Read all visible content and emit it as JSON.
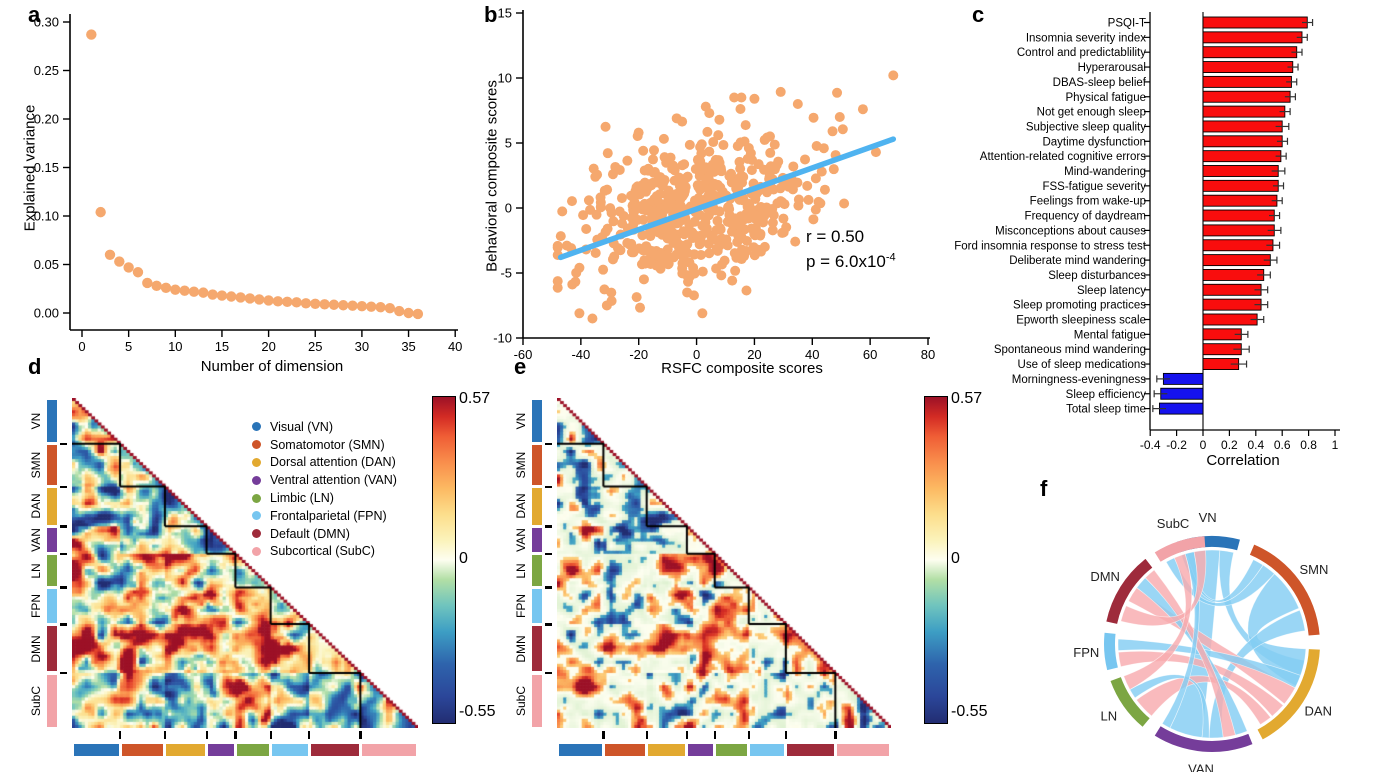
{
  "panel_labels": {
    "a": "a",
    "b": "b",
    "c": "c",
    "d": "d",
    "e": "e",
    "f": "f"
  },
  "networks": [
    {
      "name": "Visual",
      "abbr": "VN",
      "color": "#2A74B8",
      "count": 15
    },
    {
      "name": "Somatomotor",
      "abbr": "SMN",
      "color": "#CE5529",
      "count": 14
    },
    {
      "name": "Dorsal attention",
      "abbr": "DAN",
      "color": "#E2A930",
      "count": 13
    },
    {
      "name": "Ventral attention",
      "abbr": "VAN",
      "color": "#753D9A",
      "count": 9
    },
    {
      "name": "Limbic",
      "abbr": "LN",
      "color": "#7CA643",
      "count": 11
    },
    {
      "name": "Frontalparietal",
      "abbr": "FPN",
      "color": "#77C6F0",
      "count": 12
    },
    {
      "name": "Default",
      "abbr": "DMN",
      "color": "#9E2B3B",
      "count": 16
    },
    {
      "name": "Subcortical",
      "abbr": "SubC",
      "color": "#F2A3A8",
      "count": 18
    }
  ],
  "chart_data": [
    {
      "id": "a",
      "type": "scatter",
      "xlabel": "Number of dimension",
      "ylabel": "Explained variance",
      "xlim": [
        0,
        40
      ],
      "ylim": [
        0,
        0.3
      ],
      "xticks": [
        0,
        5,
        10,
        15,
        20,
        25,
        30,
        35,
        40
      ],
      "ytick_vals": [
        0,
        0.05,
        0.1,
        0.15,
        0.2,
        0.25,
        0.3
      ],
      "ytick_labels": [
        "0.00",
        "0.05",
        "0.10",
        "0.15",
        "0.20",
        "0.25",
        "0.30"
      ],
      "point_color": "#F5A86E",
      "x": [
        1,
        2,
        3,
        4,
        5,
        6,
        7,
        8,
        9,
        10,
        11,
        12,
        13,
        14,
        15,
        16,
        17,
        18,
        19,
        20,
        21,
        22,
        23,
        24,
        25,
        26,
        27,
        28,
        29,
        30,
        31,
        32,
        33,
        34,
        35,
        36
      ],
      "y": [
        0.287,
        0.104,
        0.06,
        0.053,
        0.047,
        0.042,
        0.031,
        0.028,
        0.026,
        0.024,
        0.023,
        0.022,
        0.021,
        0.019,
        0.018,
        0.017,
        0.016,
        0.015,
        0.014,
        0.013,
        0.012,
        0.0115,
        0.011,
        0.01,
        0.0095,
        0.009,
        0.0085,
        0.008,
        0.0075,
        0.007,
        0.0065,
        0.006,
        0.005,
        0.002,
        0.0,
        -0.001
      ]
    },
    {
      "id": "b",
      "type": "scatter",
      "xlabel": "RSFC composite scores",
      "ylabel": "Behavioral composite scores",
      "xlim": [
        -60,
        80
      ],
      "ylim": [
        -10,
        15
      ],
      "xticks": [
        -60,
        -40,
        -20,
        0,
        20,
        40,
        60,
        80
      ],
      "yticks": [
        -10,
        -5,
        0,
        5,
        10,
        15
      ],
      "point_color": "#F5A86E",
      "annotation": {
        "line1": "r = 0.50",
        "line2_base": "p = 6.0x10",
        "line2_exp": "-4"
      },
      "trend": {
        "x1": -47,
        "y1": -3.8,
        "x2": 68,
        "y2": 5.3,
        "color": "#4FB3F0"
      },
      "points": {
        "n": 560,
        "seed": 13,
        "x_sd": 19,
        "noise_sd": 2.75,
        "slope": 0.047,
        "x_min": -48,
        "x_max": 69,
        "y_min": -8.6,
        "y_max": 10.3
      },
      "extra_points": [
        [
          68,
          10.2
        ],
        [
          -40.5,
          -8.1
        ],
        [
          -36,
          -8.5
        ],
        [
          2,
          -8.1
        ],
        [
          13,
          8.5
        ],
        [
          15.5,
          8.5
        ],
        [
          20,
          8.4
        ],
        [
          35,
          8.0
        ],
        [
          57.5,
          7.6
        ],
        [
          49.5,
          7.0
        ],
        [
          62,
          4.3
        ],
        [
          47,
          5.9
        ],
        [
          44,
          4.6
        ],
        [
          -35,
          2.4
        ]
      ]
    },
    {
      "id": "c",
      "type": "bar",
      "xlabel": "Correlation",
      "xlim": [
        -0.4,
        1
      ],
      "xticks": [
        -0.4,
        -0.2,
        0,
        0.2,
        0.4,
        0.6,
        0.8,
        1
      ],
      "xtick_labels": [
        "-0.4",
        "-0.2",
        "0",
        "0.2",
        "0.4",
        "0.6",
        "0.8",
        "1"
      ],
      "pos_color": "#F90D0D",
      "neg_color": "#1512EE",
      "categories": [
        "PSQI-T",
        "Insomnia severity index",
        "Control and predictablility",
        "Hyperarousal",
        "DBAS-sleep belief",
        "Physical fatigue",
        "Not get enough sleep",
        "Subjective sleep quality",
        "Daytime dysfunction",
        "Attention-related cognitive errors",
        "Mind-wandering",
        "FSS-fatigue severity",
        "Feelings from wake-up",
        "Frequency of daydream",
        "Misconceptions about causes",
        "Ford insomnia response to stress test",
        "Deliberate mind wandering",
        "Sleep disturbances",
        "Sleep latency",
        "Sleep promoting practices",
        "Epworth sleepiness scale",
        "Mental fatigue",
        "Spontaneous mind wandering",
        "Use of sleep medications",
        "Morningness-eveningness",
        "Sleep efficiency",
        "Total sleep time"
      ],
      "values": [
        0.79,
        0.75,
        0.71,
        0.68,
        0.67,
        0.66,
        0.62,
        0.6,
        0.6,
        0.59,
        0.57,
        0.57,
        0.56,
        0.54,
        0.54,
        0.53,
        0.51,
        0.46,
        0.44,
        0.44,
        0.41,
        0.29,
        0.29,
        0.27,
        -0.3,
        -0.32,
        -0.33
      ],
      "errors": [
        0.04,
        0.04,
        0.04,
        0.04,
        0.04,
        0.04,
        0.04,
        0.05,
        0.04,
        0.04,
        0.05,
        0.04,
        0.04,
        0.04,
        0.05,
        0.05,
        0.05,
        0.05,
        0.05,
        0.05,
        0.05,
        0.05,
        0.06,
        0.06,
        0.05,
        0.05,
        0.05
      ]
    },
    {
      "id": "d",
      "type": "heatmap",
      "seed": 11,
      "sparsity": 0,
      "threshold": 0,
      "colorbar": {
        "max": "0.57",
        "mid": "0",
        "min": "-0.55",
        "vmax": 0.57,
        "vmin": -0.55
      },
      "legend_suffix_open": " (",
      "legend_suffix_close": ")",
      "bias": [
        [
          -0.05
        ],
        [
          0.02,
          -0.22
        ],
        [
          -0.18,
          -0.12,
          -0.18
        ],
        [
          0.12,
          -0.18,
          -0.22,
          -0.12
        ],
        [
          0.15,
          0.08,
          0.25,
          0.2,
          0.08
        ],
        [
          0.08,
          0.12,
          0.2,
          0.15,
          0.25,
          0.08
        ],
        [
          0.12,
          0.28,
          0.33,
          0.25,
          0.3,
          0.12,
          0.25
        ],
        [
          0.08,
          0.12,
          -0.08,
          0.0,
          0.08,
          -0.2,
          0.12,
          -0.15
        ]
      ]
    },
    {
      "id": "e",
      "type": "heatmap",
      "seed": 29,
      "sparsity": 1,
      "threshold": 0.21,
      "colorbar": {
        "max": "0.57",
        "mid": "0",
        "min": "-0.55",
        "vmax": 0.57,
        "vmin": -0.55
      },
      "bias": [
        [
          -0.04
        ],
        [
          0.02,
          -0.18
        ],
        [
          -0.14,
          -0.1,
          -0.15
        ],
        [
          0.1,
          -0.15,
          -0.18,
          -0.1
        ],
        [
          0.12,
          0.06,
          0.2,
          0.16,
          0.06
        ],
        [
          0.06,
          0.1,
          0.16,
          0.12,
          0.2,
          0.06
        ],
        [
          0.1,
          0.24,
          0.28,
          0.2,
          0.25,
          0.1,
          0.2
        ],
        [
          0.06,
          0.1,
          -0.07,
          0.0,
          0.06,
          -0.17,
          0.1,
          -0.12
        ]
      ]
    },
    {
      "id": "f",
      "type": "chord",
      "pos_color": "#F8ABAF",
      "neg_color": "#84CDF3",
      "arcs": [
        {
          "abbr": "VN",
          "a0": -19,
          "a1": 15
        },
        {
          "abbr": "SMN",
          "a0": 23,
          "a1": 85
        },
        {
          "abbr": "DAN",
          "a0": 93,
          "a1": 152
        },
        {
          "abbr": "VAN",
          "a0": 158,
          "a1": 212
        },
        {
          "abbr": "LN",
          "a0": 220,
          "a1": 250
        },
        {
          "abbr": "FPN",
          "a0": 256,
          "a1": 276
        },
        {
          "abbr": "DMN",
          "a0": 282,
          "a1": 322
        },
        {
          "abbr": "SubC",
          "a0": 328,
          "a1": 356
        }
      ],
      "chords": [
        {
          "a": "VN",
          "f0": 0.1,
          "f1": 0.7,
          "b": "VAN",
          "g0": 0.52,
          "g1": 0.9,
          "sign": "neg"
        },
        {
          "a": "VN",
          "f0": 0.7,
          "f1": 0.95,
          "b": "DAN",
          "g0": 0.12,
          "g1": 0.28,
          "sign": "neg"
        },
        {
          "a": "VN",
          "f0": 0.0,
          "f1": 0.1,
          "b": "SMN",
          "g0": 0.05,
          "g1": 0.16,
          "sign": "neg"
        },
        {
          "a": "SMN",
          "f0": 0.3,
          "f1": 0.72,
          "b": "DAN",
          "g0": 0.0,
          "g1": 0.4,
          "sign": "neg"
        },
        {
          "a": "SMN",
          "f0": 0.74,
          "f1": 0.95,
          "b": "VAN",
          "g0": 0.28,
          "g1": 0.44,
          "sign": "neg"
        },
        {
          "a": "SubC",
          "f0": 0.1,
          "f1": 0.3,
          "b": "SMN",
          "g0": 0.16,
          "g1": 0.3,
          "sign": "neg"
        },
        {
          "a": "DMN",
          "f0": 0.38,
          "f1": 0.62,
          "b": "DAN",
          "g0": 0.42,
          "g1": 0.62,
          "sign": "pos"
        },
        {
          "a": "FPN",
          "f0": 0.0,
          "f1": 0.45,
          "b": "DAN",
          "g0": 0.64,
          "g1": 0.8,
          "sign": "pos"
        },
        {
          "a": "LN",
          "f0": 0.0,
          "f1": 0.45,
          "b": "DAN",
          "g0": 0.82,
          "g1": 0.95,
          "sign": "pos"
        },
        {
          "a": "FPN",
          "f0": 0.5,
          "f1": 0.85,
          "b": "DAN",
          "g0": 0.28,
          "g1": 0.42,
          "sign": "neg"
        },
        {
          "a": "DMN",
          "f0": 0.62,
          "f1": 0.82,
          "b": "VAN",
          "g0": 0.0,
          "g1": 0.14,
          "sign": "neg"
        },
        {
          "a": "DMN",
          "f0": 0.82,
          "f1": 1.0,
          "b": "VAN",
          "g0": 0.14,
          "g1": 0.28,
          "sign": "pos"
        },
        {
          "a": "LN",
          "f0": 0.5,
          "f1": 0.7,
          "b": "VAN",
          "g0": 0.44,
          "g1": 0.52,
          "sign": "neg"
        },
        {
          "a": "SubC",
          "f0": 0.55,
          "f1": 0.75,
          "b": "VAN",
          "g0": 0.9,
          "g1": 1.0,
          "sign": "neg"
        },
        {
          "a": "SubC",
          "f0": 0.75,
          "f1": 1.0,
          "b": "DMN",
          "g0": 0.05,
          "g1": 0.3,
          "sign": "pos"
        },
        {
          "a": "SubC",
          "f0": 0.3,
          "f1": 0.55,
          "b": "LN",
          "g0": 0.7,
          "g1": 1.0,
          "sign": "pos"
        }
      ]
    }
  ]
}
